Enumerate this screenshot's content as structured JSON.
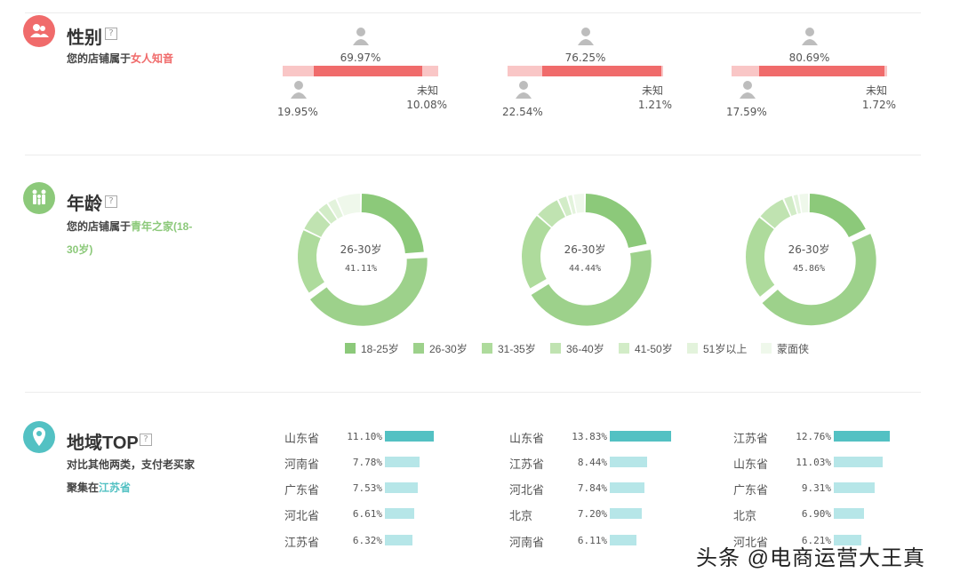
{
  "colors": {
    "gender_accent": "#f06b6b",
    "gender_light": "#f9c6c6",
    "age_accent": "#8cc97a",
    "region_accent": "#53c1c3",
    "region_light": "#b6e6e8"
  },
  "gender": {
    "title": "性别",
    "help": "?",
    "desc_prefix": "您的店铺属于",
    "desc_highlight": "女人知音",
    "groups": [
      {
        "female": "69.97%",
        "male": "19.95%",
        "unknown_label": "未知",
        "unknown": "10.08%",
        "female_v": 69.97,
        "male_v": 19.95,
        "unknown_v": 10.08
      },
      {
        "female": "76.25%",
        "male": "22.54%",
        "unknown_label": "未知",
        "unknown": "1.21%",
        "female_v": 76.25,
        "male_v": 22.54,
        "unknown_v": 1.21
      },
      {
        "female": "80.69%",
        "male": "17.59%",
        "unknown_label": "未知",
        "unknown": "1.72%",
        "female_v": 80.69,
        "male_v": 17.59,
        "unknown_v": 1.72
      }
    ]
  },
  "age": {
    "title": "年龄",
    "help": "?",
    "desc_prefix": "您的店铺属于",
    "desc_highlight1": "青年之家(18-",
    "desc_highlight2": "30岁)",
    "legend": [
      "18-25岁",
      "26-30岁",
      "31-35岁",
      "36-40岁",
      "41-50岁",
      "51岁以上",
      "蒙面侠"
    ],
    "legend_colors": [
      "#8cc97a",
      "#9dd18b",
      "#aedb9c",
      "#c0e3b1",
      "#d2ecc7",
      "#e3f3dc",
      "#eff8eb"
    ],
    "donuts": [
      {
        "center_label": "26-30岁",
        "center_value": "41.11%",
        "slices": [
          24,
          41.11,
          17,
          6,
          3,
          2.5,
          6.39
        ]
      },
      {
        "center_label": "26-30岁",
        "center_value": "44.44%",
        "slices": [
          22,
          44.44,
          20,
          6.5,
          2.5,
          1.5,
          3.06
        ]
      },
      {
        "center_label": "26-30岁",
        "center_value": "45.86%",
        "slices": [
          18,
          45.86,
          22,
          7.5,
          2.5,
          1.5,
          2.64
        ]
      }
    ]
  },
  "region": {
    "title": "地域TOP",
    "help": "?",
    "desc_line1": "对比其他两类，支付老买家",
    "desc_prefix": "聚集在",
    "desc_highlight": "江苏省",
    "groups": [
      [
        {
          "name": "山东省",
          "pct": "11.10%",
          "v": 11.1
        },
        {
          "name": "河南省",
          "pct": "7.78%",
          "v": 7.78
        },
        {
          "name": "广东省",
          "pct": "7.53%",
          "v": 7.53
        },
        {
          "name": "河北省",
          "pct": "6.61%",
          "v": 6.61
        },
        {
          "name": "江苏省",
          "pct": "6.32%",
          "v": 6.32
        }
      ],
      [
        {
          "name": "山东省",
          "pct": "13.83%",
          "v": 13.83
        },
        {
          "name": "江苏省",
          "pct": "8.44%",
          "v": 8.44
        },
        {
          "name": "河北省",
          "pct": "7.84%",
          "v": 7.84
        },
        {
          "name": "北京",
          "pct": "7.20%",
          "v": 7.2
        },
        {
          "name": "河南省",
          "pct": "6.11%",
          "v": 6.11
        }
      ],
      [
        {
          "name": "江苏省",
          "pct": "12.76%",
          "v": 12.76
        },
        {
          "name": "山东省",
          "pct": "11.03%",
          "v": 11.03
        },
        {
          "name": "广东省",
          "pct": "9.31%",
          "v": 9.31
        },
        {
          "name": "北京",
          "pct": "6.90%",
          "v": 6.9
        },
        {
          "name": "河北省",
          "pct": "6.21%",
          "v": 6.21
        }
      ]
    ]
  },
  "watermark": "头条 @电商运营大王真"
}
